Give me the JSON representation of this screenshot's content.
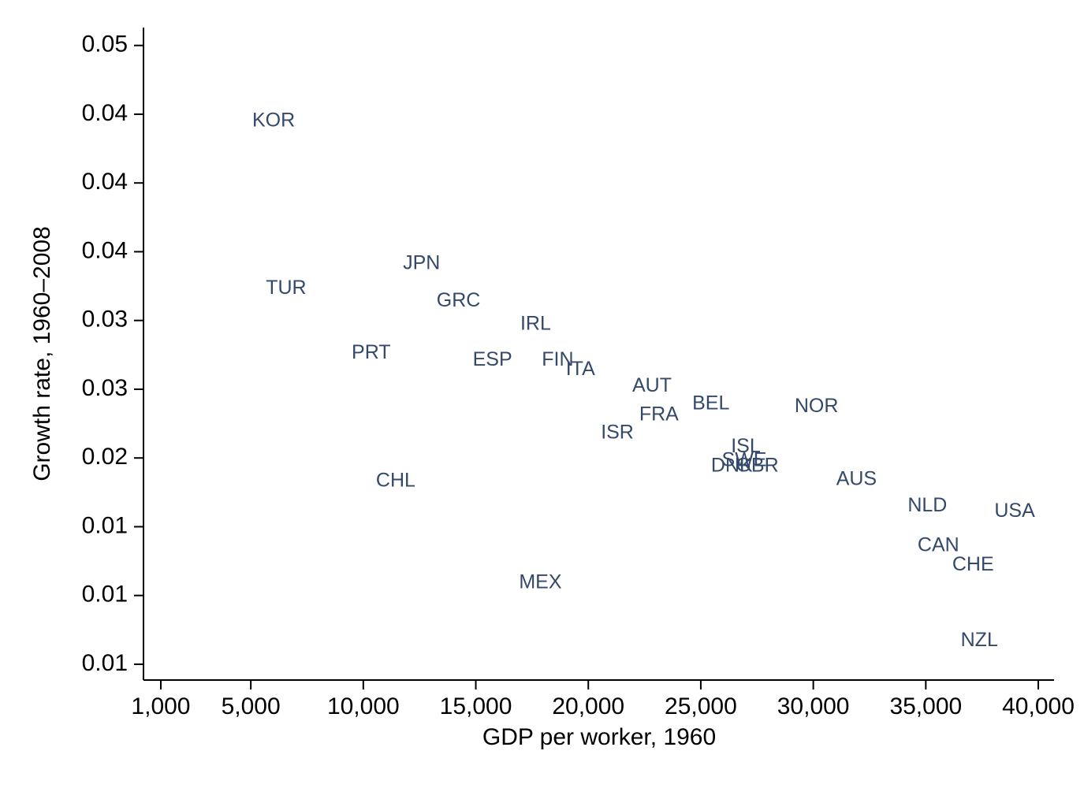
{
  "chart_data": {
    "type": "scatter",
    "xlabel": "GDP per worker, 1960",
    "ylabel": "Growth rate, 1960–2008",
    "color": "#34496a",
    "labels": [
      "KOR",
      "TUR",
      "JPN",
      "GRC",
      "IRL",
      "PRT",
      "ESP",
      "FIN",
      "ITA",
      "AUT",
      "BEL",
      "NOR",
      "FRA",
      "ISR",
      "ISL",
      "SWE",
      "DNK",
      "GBR",
      "AUS",
      "CHL",
      "NLD",
      "USA",
      "CAN",
      "CHE",
      "MEX",
      "NZL"
    ],
    "x": [
      6014,
      6570,
      12590,
      14230,
      17660,
      10350,
      15740,
      18640,
      19650,
      22830,
      25450,
      30140,
      23140,
      21290,
      27000,
      26930,
      26380,
      27510,
      31920,
      11440,
      35070,
      38950,
      35560,
      37100,
      17870,
      37380
    ],
    "values": [
      0.0445,
      0.0323,
      0.0341,
      0.0314,
      0.0297,
      0.0276,
      0.0271,
      0.0271,
      0.0264,
      0.0252,
      0.0239,
      0.0237,
      0.0231,
      0.0218,
      0.0208,
      0.0198,
      0.0194,
      0.0194,
      0.0184,
      0.0183,
      0.0165,
      0.0161,
      0.0136,
      0.0122,
      0.0109,
      0.0067
    ],
    "xlim": [
      230,
      40700
    ],
    "ylim": [
      0.00385,
      0.0513
    ],
    "xticks": [
      {
        "value": 1000,
        "label": "1,000"
      },
      {
        "value": 5000,
        "label": "5,000"
      },
      {
        "value": 10000,
        "label": "10,000"
      },
      {
        "value": 15000,
        "label": "15,000"
      },
      {
        "value": 20000,
        "label": "20,000"
      },
      {
        "value": 25000,
        "label": "25,000"
      },
      {
        "value": 30000,
        "label": "30,000"
      },
      {
        "value": 35000,
        "label": "35,000"
      },
      {
        "value": 40000,
        "label": "40,000"
      }
    ],
    "yticks": [
      {
        "value": 0.005,
        "label": "0.01"
      },
      {
        "value": 0.01,
        "label": "0.01"
      },
      {
        "value": 0.015,
        "label": "0.01"
      },
      {
        "value": 0.02,
        "label": "0.02"
      },
      {
        "value": 0.025,
        "label": "0.03"
      },
      {
        "value": 0.03,
        "label": "0.03"
      },
      {
        "value": 0.035,
        "label": "0.04"
      },
      {
        "value": 0.04,
        "label": "0.04"
      },
      {
        "value": 0.045,
        "label": "0.04"
      },
      {
        "value": 0.05,
        "label": "0.05"
      }
    ]
  }
}
